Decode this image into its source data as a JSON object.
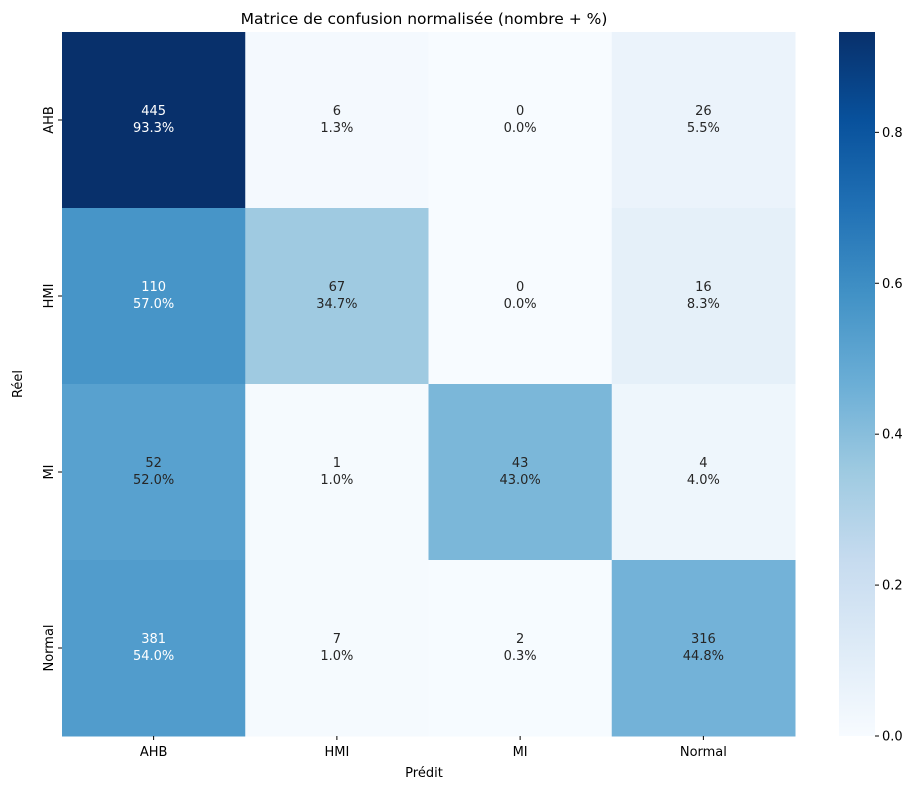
{
  "chart_data": {
    "type": "heatmap",
    "title": "Matrice de confusion normalisée (nombre + %)",
    "xlabel": "Prédit",
    "ylabel": "Réel",
    "x_categories": [
      "AHB",
      "HMI",
      "MI",
      "Normal"
    ],
    "y_categories": [
      "AHB",
      "HMI",
      "MI",
      "Normal"
    ],
    "counts": [
      [
        445,
        6,
        0,
        26
      ],
      [
        110,
        67,
        0,
        16
      ],
      [
        52,
        1,
        43,
        4
      ],
      [
        381,
        7,
        2,
        316
      ]
    ],
    "percent_labels": [
      [
        "93.3%",
        "1.3%",
        "0.0%",
        "5.5%"
      ],
      [
        "57.0%",
        "34.7%",
        "0.0%",
        "8.3%"
      ],
      [
        "52.0%",
        "1.0%",
        "43.0%",
        "4.0%"
      ],
      [
        "54.0%",
        "1.0%",
        "0.3%",
        "44.8%"
      ]
    ],
    "values": [
      [
        0.933,
        0.013,
        0.0,
        0.055
      ],
      [
        0.57,
        0.347,
        0.0,
        0.083
      ],
      [
        0.52,
        0.01,
        0.43,
        0.04
      ],
      [
        0.54,
        0.01,
        0.003,
        0.448
      ]
    ],
    "colormap": "Blues",
    "vmin": 0.0,
    "vmax": 0.933,
    "colorbar_ticks": [
      "0.0",
      "0.2",
      "0.4",
      "0.6",
      "0.8"
    ],
    "colorbar_tick_values": [
      0.0,
      0.2,
      0.4,
      0.6,
      0.8
    ],
    "legend": "none",
    "grid": false
  }
}
